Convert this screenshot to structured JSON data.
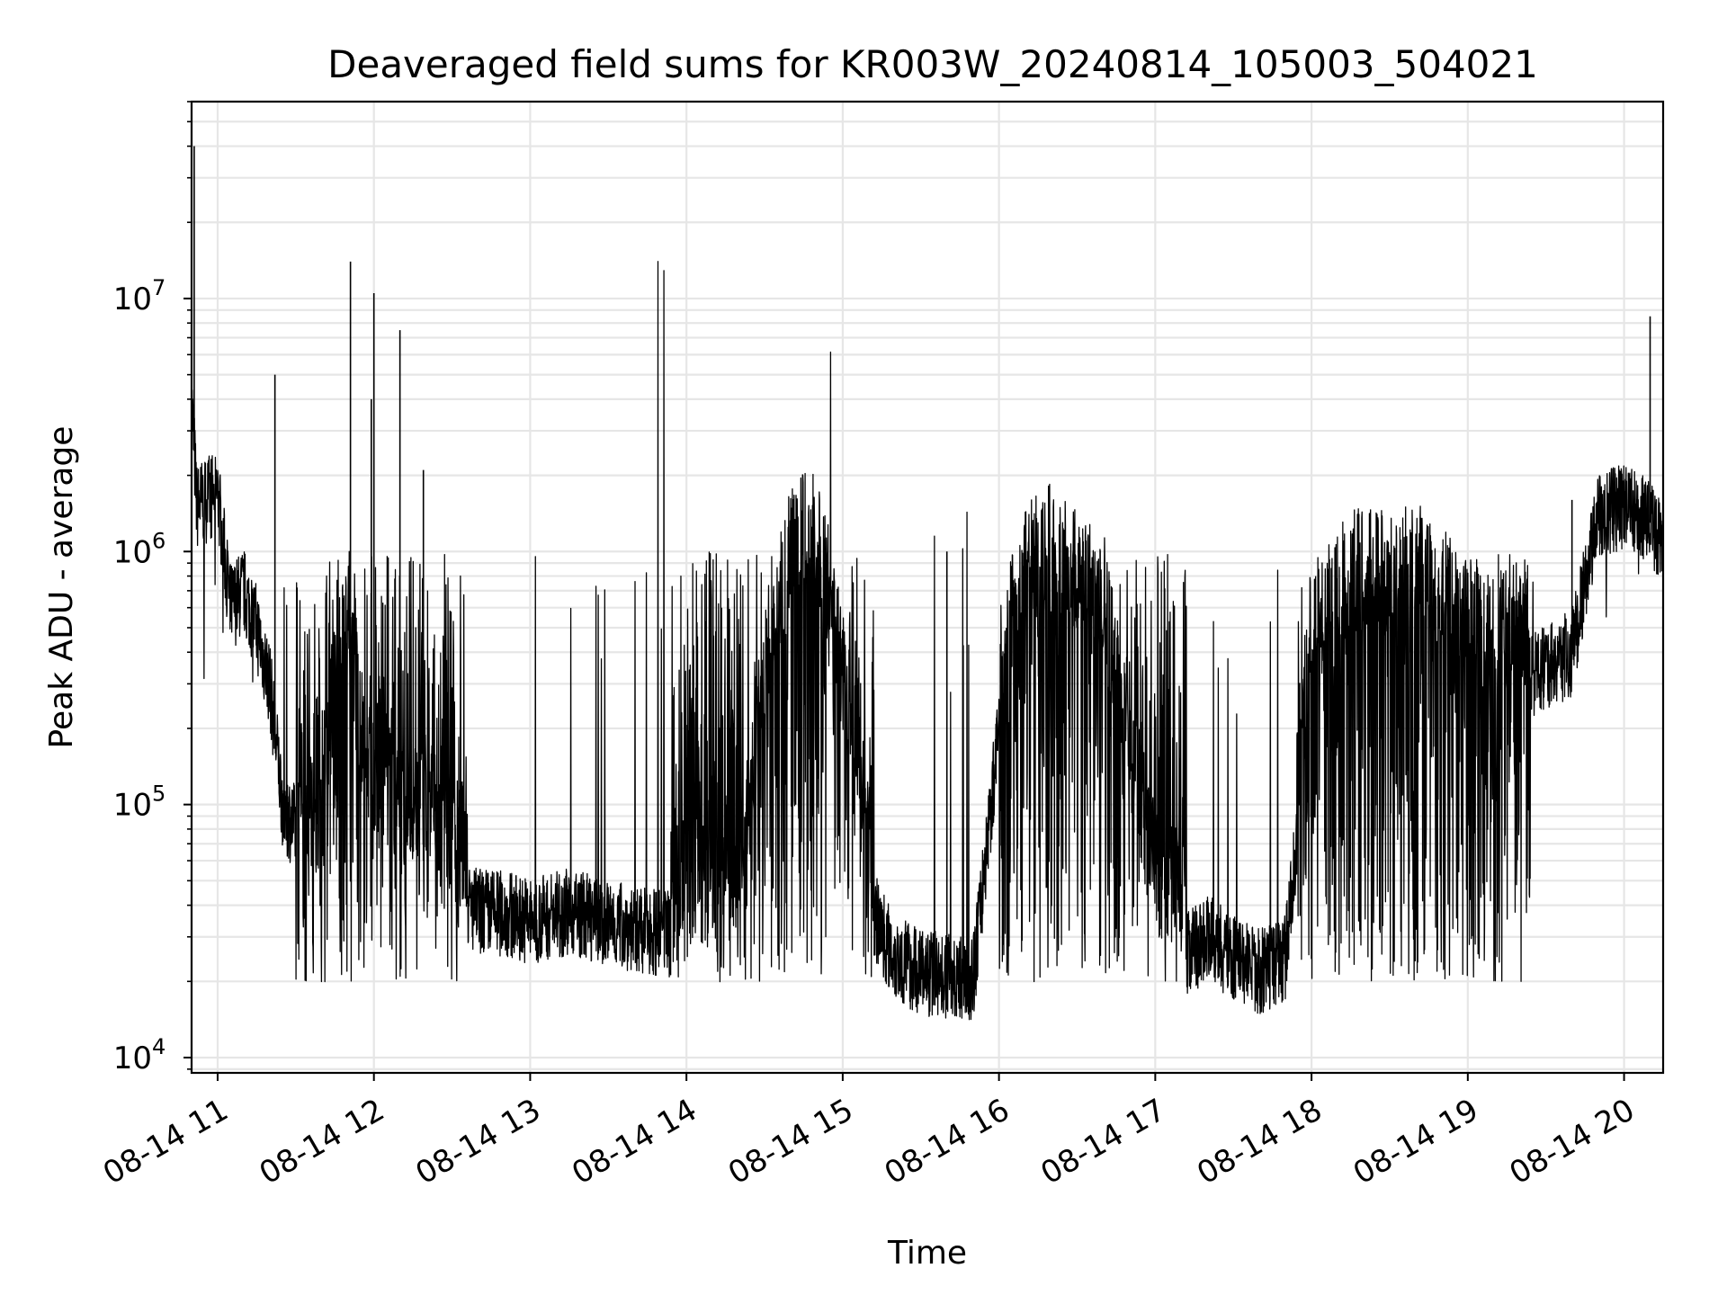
{
  "chart_data": {
    "type": "line",
    "title": "Deaveraged field sums for KR003W_20240814_105003_504021",
    "xlabel": "Time",
    "ylabel": "Peak ADU - average",
    "yscale": "log",
    "ylim": [
      8700,
      60000000
    ],
    "xlim": [
      "08-14 10:50:00",
      "08-14 20:15:00"
    ],
    "grid": true,
    "line_color": "#000000",
    "x_ticks": [
      "08-14 11",
      "08-14 12",
      "08-14 13",
      "08-14 14",
      "08-14 15",
      "08-14 16",
      "08-14 17",
      "08-14 18",
      "08-14 19",
      "08-14 20"
    ],
    "y_ticks": [
      {
        "value": 10000,
        "base": "10",
        "exp": "4"
      },
      {
        "value": 100000,
        "base": "10",
        "exp": "5"
      },
      {
        "value": 1000000,
        "base": "10",
        "exp": "6"
      },
      {
        "value": 10000000,
        "base": "10",
        "exp": "7"
      }
    ],
    "series": [
      {
        "x": [
          "10:50",
          "10:51",
          "10:52",
          "10:55",
          "11:00",
          "11:05",
          "11:10",
          "11:15",
          "11:20",
          "11:25",
          "11:30",
          "11:35",
          "11:40",
          "11:45",
          "11:50",
          "11:55",
          "12:00",
          "12:10",
          "12:20",
          "12:30",
          "12:40",
          "12:50",
          "13:00",
          "13:15",
          "13:30",
          "13:45",
          "14:00",
          "14:10",
          "14:20",
          "14:30",
          "14:40",
          "14:50",
          "15:00",
          "15:10",
          "15:20",
          "15:30",
          "15:40",
          "15:50",
          "16:00",
          "16:10",
          "16:20",
          "16:30",
          "16:40",
          "16:50",
          "17:00",
          "17:10",
          "17:20",
          "17:30",
          "17:40",
          "17:50",
          "18:00",
          "18:10",
          "18:20",
          "18:30",
          "18:40",
          "18:50",
          "19:00",
          "19:10",
          "19:20",
          "19:30",
          "19:40",
          "19:50",
          "20:00",
          "20:10",
          "20:15"
        ],
        "y": [
          4000000,
          2500000,
          1500000,
          1600000,
          1700000,
          600000,
          700000,
          500000,
          300000,
          100000,
          80000,
          60000,
          45000,
          200000,
          300000,
          100000,
          80000,
          60000,
          60000,
          40000,
          38000,
          37000,
          35000,
          38000,
          34000,
          32000,
          30000,
          25000,
          30000,
          200000,
          600000,
          700000,
          200000,
          40000,
          25000,
          22000,
          21000,
          20000,
          200000,
          500000,
          600000,
          500000,
          400000,
          100000,
          30000,
          25000,
          30000,
          25000,
          22000,
          25000,
          300000,
          400000,
          500000,
          450000,
          500000,
          400000,
          300000,
          250000,
          300000,
          350000,
          400000,
          1400000,
          1500000,
          1300000,
          1100000
        ]
      }
    ]
  }
}
